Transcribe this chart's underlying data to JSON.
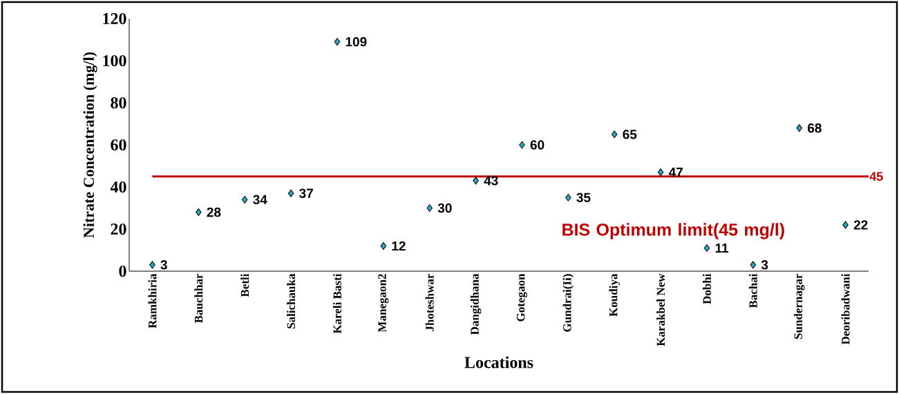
{
  "chart_data": {
    "type": "scatter",
    "xlabel": "Locations",
    "ylabel": "Nitrate Concentration (mg/l)",
    "categories": [
      "Ramkhiria",
      "Bauchhar",
      "Betli",
      "Salichauka",
      "Kareli Basti",
      "Manegaon2",
      "Jhoteshwar",
      "Dangidhana",
      "Gotegaon",
      "Gundrai(Ii)",
      "Koudiya",
      "Karakbel New",
      "Dobhi",
      "Bachai",
      "Sundernagar",
      "Deoribadwani"
    ],
    "values": [
      3,
      28,
      34,
      37,
      109,
      12,
      30,
      43,
      60,
      35,
      65,
      47,
      11,
      3,
      68,
      22
    ],
    "color": "#2aa7c9",
    "marker": "diamond",
    "data_labels": true,
    "ylim": [
      0,
      120
    ],
    "yticks": [
      0,
      20,
      40,
      60,
      80,
      100,
      120
    ],
    "ref_lines": [
      {
        "axis": "y",
        "value": 45,
        "label": "45",
        "color": "#c00000"
      }
    ],
    "annotations": [
      "BIS Optimum limit(45 mg/l)"
    ],
    "grid": false
  }
}
